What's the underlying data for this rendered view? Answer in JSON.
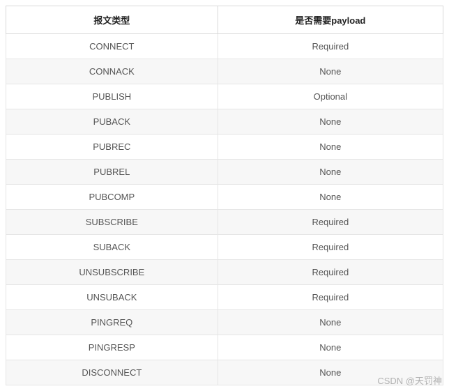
{
  "table": {
    "columns": [
      "报文类型",
      "是否需要payload"
    ],
    "rows": [
      [
        "CONNECT",
        "Required"
      ],
      [
        "CONNACK",
        "None"
      ],
      [
        "PUBLISH",
        "Optional"
      ],
      [
        "PUBACK",
        "None"
      ],
      [
        "PUBREC",
        "None"
      ],
      [
        "PUBREL",
        "None"
      ],
      [
        "PUBCOMP",
        "None"
      ],
      [
        "SUBSCRIBE",
        "Required"
      ],
      [
        "SUBACK",
        "Required"
      ],
      [
        "UNSUBSCRIBE",
        "Required"
      ],
      [
        "UNSUBACK",
        "Required"
      ],
      [
        "PINGREQ",
        "None"
      ],
      [
        "PINGRESP",
        "None"
      ],
      [
        "DISCONNECT",
        "None"
      ]
    ],
    "header_bg": "#ffffff",
    "row_bg": "#ffffff",
    "row_alt_bg": "#f7f7f7",
    "border_color": "#e5e5e5",
    "text_color": "#555555",
    "font_size": 13
  },
  "watermark": "CSDN @天罚神"
}
